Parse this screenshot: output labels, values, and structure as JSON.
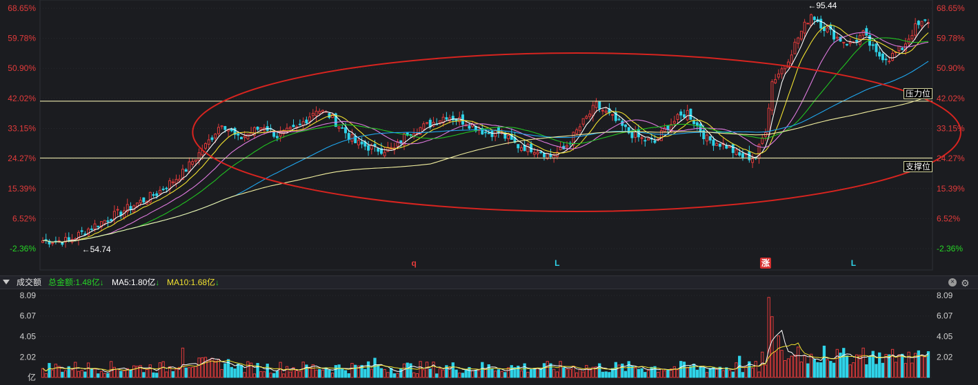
{
  "chart_data": {
    "type": "candlestick",
    "price_axis": {
      "ticks": [
        "68.65%",
        "59.78%",
        "50.90%",
        "42.02%",
        "33.15%",
        "24.27%",
        "15.39%",
        "6.52%",
        "-2.36%"
      ],
      "tick_values": [
        68.65,
        59.78,
        50.9,
        42.02,
        33.15,
        24.27,
        15.39,
        6.52,
        -2.36
      ],
      "range": [
        -2.36,
        68.65
      ]
    },
    "annotations": {
      "low_marker": "←54.74",
      "high_marker": "←95.44",
      "resistance_label": "压力位",
      "support_label": "支撑位",
      "resistance_level": 41.2,
      "support_level": 24.4,
      "signals": [
        {
          "text": "q",
          "color": "#e33b3b",
          "x_index": 114
        },
        {
          "text": "L",
          "color": "#2fd3e8",
          "x_index": 158
        },
        {
          "text": "涨",
          "color": "#ffffff",
          "bg": "#d8302f",
          "x_index": 222
        },
        {
          "text": "L",
          "color": "#2fd3e8",
          "x_index": 249
        }
      ]
    },
    "colors": {
      "up": "#e33b3b",
      "down": "#2fd3e8",
      "ma_short": "#ffffff",
      "ma_medium": "#f2e230",
      "ma_pink": "#e07be0",
      "ma_green": "#21c421",
      "ma_blue": "#1fa8f0",
      "ma_long": "#f3f0a0",
      "ellipse": "#d8241f"
    },
    "key_points": [
      {
        "i": 0,
        "close": 0
      },
      {
        "i": 8,
        "close": 0
      },
      {
        "i": 15,
        "close": 4
      },
      {
        "i": 25,
        "close": 9
      },
      {
        "i": 35,
        "close": 14
      },
      {
        "i": 43,
        "close": 20
      },
      {
        "i": 50,
        "close": 28
      },
      {
        "i": 55,
        "close": 35
      },
      {
        "i": 60,
        "close": 30
      },
      {
        "i": 68,
        "close": 34
      },
      {
        "i": 72,
        "close": 31
      },
      {
        "i": 78,
        "close": 33
      },
      {
        "i": 84,
        "close": 39
      },
      {
        "i": 88,
        "close": 37
      },
      {
        "i": 92,
        "close": 33
      },
      {
        "i": 96,
        "close": 29
      },
      {
        "i": 102,
        "close": 27
      },
      {
        "i": 108,
        "close": 27
      },
      {
        "i": 112,
        "close": 32
      },
      {
        "i": 118,
        "close": 34
      },
      {
        "i": 124,
        "close": 37
      },
      {
        "i": 130,
        "close": 35
      },
      {
        "i": 136,
        "close": 32
      },
      {
        "i": 140,
        "close": 32
      },
      {
        "i": 146,
        "close": 28
      },
      {
        "i": 152,
        "close": 27
      },
      {
        "i": 156,
        "close": 25
      },
      {
        "i": 160,
        "close": 27
      },
      {
        "i": 166,
        "close": 35
      },
      {
        "i": 170,
        "close": 40
      },
      {
        "i": 174,
        "close": 37
      },
      {
        "i": 180,
        "close": 32
      },
      {
        "i": 184,
        "close": 30
      },
      {
        "i": 188,
        "close": 29
      },
      {
        "i": 192,
        "close": 34
      },
      {
        "i": 198,
        "close": 38
      },
      {
        "i": 204,
        "close": 30
      },
      {
        "i": 210,
        "close": 28
      },
      {
        "i": 214,
        "close": 25
      },
      {
        "i": 219,
        "close": 24.5
      },
      {
        "i": 222,
        "close": 33
      },
      {
        "i": 224,
        "close": 47
      },
      {
        "i": 228,
        "close": 52
      },
      {
        "i": 232,
        "close": 60
      },
      {
        "i": 236,
        "close": 67
      },
      {
        "i": 240,
        "close": 63
      },
      {
        "i": 244,
        "close": 60
      },
      {
        "i": 248,
        "close": 58
      },
      {
        "i": 252,
        "close": 61
      },
      {
        "i": 256,
        "close": 55
      },
      {
        "i": 260,
        "close": 54
      },
      {
        "i": 264,
        "close": 57
      },
      {
        "i": 268,
        "close": 63
      },
      {
        "i": 272,
        "close": 65
      }
    ],
    "bar_count": 273,
    "volume_axis": {
      "ticks": [
        "8.09",
        "6.07",
        "4.05",
        "2.02",
        "亿"
      ],
      "tick_values": [
        8.09,
        6.07,
        4.05,
        2.02,
        0
      ],
      "range": [
        0,
        8.09
      ]
    },
    "volume_peaks": [
      {
        "i": 43,
        "value": 2.9
      },
      {
        "i": 54,
        "value": 1.8
      },
      {
        "i": 102,
        "value": 1.9
      },
      {
        "i": 214,
        "value": 2.1
      },
      {
        "i": 221,
        "value": 2.5
      },
      {
        "i": 223,
        "value": 7.9
      },
      {
        "i": 224,
        "value": 6.0
      },
      {
        "i": 226,
        "value": 4.1
      },
      {
        "i": 232,
        "value": 3.0
      },
      {
        "i": 240,
        "value": 3.1
      },
      {
        "i": 252,
        "value": 2.9
      },
      {
        "i": 266,
        "value": 2.5
      }
    ]
  },
  "volume_panel": {
    "title": "成交额",
    "total_label": "总金额:1.48亿",
    "ma5_label": "MA5:1.80亿",
    "ma10_label": "MA10:1.68亿",
    "arrow": "↓"
  }
}
